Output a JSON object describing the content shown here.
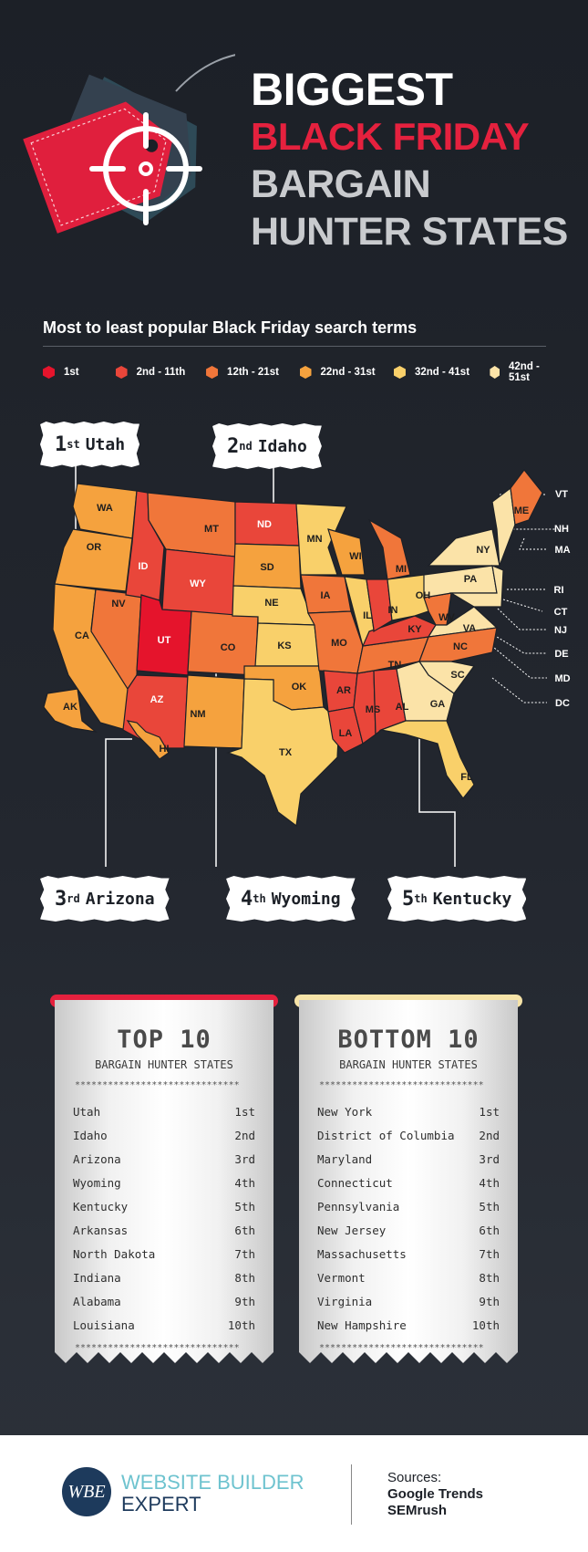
{
  "header": {
    "title_line1": "BIGGEST",
    "title_line2": "BLACK FRIDAY",
    "title_line3": "BARGAIN",
    "title_line4": "HUNTER STATES"
  },
  "legend": {
    "subtitle": "Most to least popular Black Friday search terms",
    "items": [
      {
        "label": "1st",
        "color": "#e5142c"
      },
      {
        "label": "2nd - 11th",
        "color": "#e9463a"
      },
      {
        "label": "12th - 21st",
        "color": "#f0763a"
      },
      {
        "label": "22nd - 31st",
        "color": "#f5a23e"
      },
      {
        "label": "32nd - 41st",
        "color": "#f9d06a"
      },
      {
        "label": "42nd - 51st",
        "color": "#fbe3a8"
      }
    ]
  },
  "map": {
    "states": [
      "WA",
      "OR",
      "CA",
      "NV",
      "ID",
      "MT",
      "WY",
      "UT",
      "AZ",
      "CO",
      "NM",
      "ND",
      "SD",
      "NE",
      "KS",
      "OK",
      "TX",
      "MN",
      "IA",
      "MO",
      "AR",
      "LA",
      "WI",
      "IL",
      "MS",
      "AL",
      "TN",
      "KY",
      "IN",
      "MI",
      "OH",
      "GA",
      "FL",
      "SC",
      "NC",
      "VA",
      "WV",
      "PA",
      "NY",
      "ME",
      "AK",
      "HI"
    ],
    "ne_labels": [
      "VT",
      "NH",
      "MA",
      "RI",
      "CT",
      "NJ",
      "DE",
      "MD",
      "DC"
    ]
  },
  "callouts": [
    {
      "rank_num": "1",
      "rank_suffix": "st",
      "state": "Utah"
    },
    {
      "rank_num": "2",
      "rank_suffix": "nd",
      "state": "Idaho"
    },
    {
      "rank_num": "3",
      "rank_suffix": "rd",
      "state": "Arizona"
    },
    {
      "rank_num": "4",
      "rank_suffix": "th",
      "state": "Wyoming"
    },
    {
      "rank_num": "5",
      "rank_suffix": "th",
      "state": "Kentucky"
    }
  ],
  "top10": {
    "title": "TOP 10",
    "subtitle": "BARGAIN HUNTER STATES",
    "accent": "#e5213e",
    "stars": "******************************",
    "rows": [
      {
        "state": "Utah",
        "rank": "1st"
      },
      {
        "state": "Idaho",
        "rank": "2nd"
      },
      {
        "state": "Arizona",
        "rank": "3rd"
      },
      {
        "state": "Wyoming",
        "rank": "4th"
      },
      {
        "state": "Kentucky",
        "rank": "5th"
      },
      {
        "state": "Arkansas",
        "rank": "6th"
      },
      {
        "state": "North Dakota",
        "rank": "7th"
      },
      {
        "state": "Indiana",
        "rank": "8th"
      },
      {
        "state": "Alabama",
        "rank": "9th"
      },
      {
        "state": "Louisiana",
        "rank": "10th"
      }
    ]
  },
  "bottom10": {
    "title": "BOTTOM 10",
    "subtitle": "BARGAIN HUNTER STATES",
    "accent": "#f6e3a8",
    "stars": "******************************",
    "rows": [
      {
        "state": "New York",
        "rank": "1st"
      },
      {
        "state": "District of Columbia",
        "rank": "2nd"
      },
      {
        "state": "Maryland",
        "rank": "3rd"
      },
      {
        "state": "Connecticut",
        "rank": "4th"
      },
      {
        "state": "Pennsylvania",
        "rank": "5th"
      },
      {
        "state": "New Jersey",
        "rank": "6th"
      },
      {
        "state": "Massachusetts",
        "rank": "7th"
      },
      {
        "state": "Vermont",
        "rank": "8th"
      },
      {
        "state": "Virginia",
        "rank": "9th"
      },
      {
        "state": "New Hampshire",
        "rank": "10th"
      }
    ]
  },
  "footer": {
    "logo_text": "WBE",
    "brand_line1": "WEBSITE BUILDER",
    "brand_line2": "EXPERT",
    "sources_label": "Sources:",
    "source1": "Google Trends",
    "source2": "SEMrush"
  }
}
